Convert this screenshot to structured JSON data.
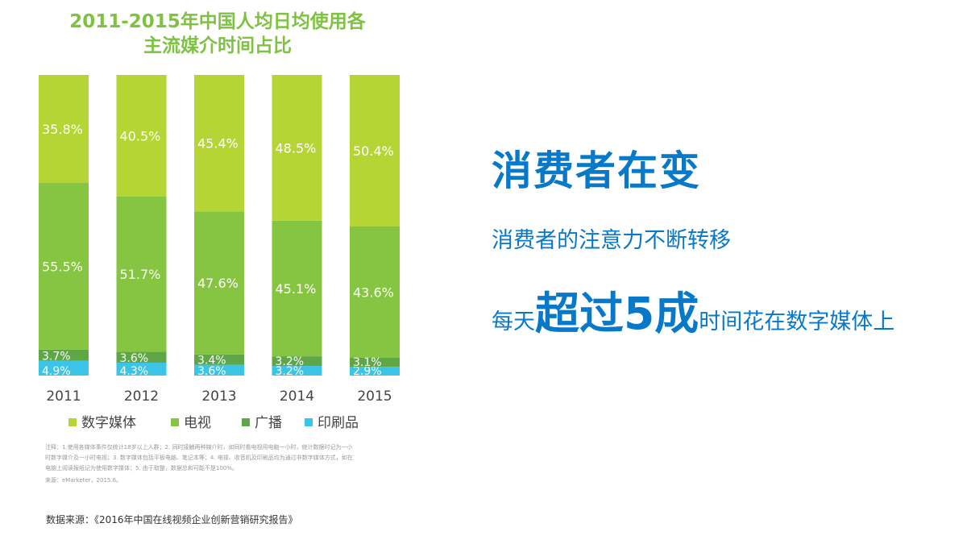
{
  "chart_data": {
    "type": "bar",
    "stacked": true,
    "percent": true,
    "title_lines": [
      "2011-2015年中国人均日均使用各",
      "主流媒介时间占比"
    ],
    "categories": [
      "2011",
      "2012",
      "2013",
      "2014",
      "2015"
    ],
    "series": [
      {
        "name": "印刷品",
        "color": "#3cc4e6",
        "values": [
          4.9,
          4.3,
          3.6,
          3.2,
          2.9
        ]
      },
      {
        "name": "广播",
        "color": "#5ea646",
        "values": [
          3.7,
          3.6,
          3.4,
          3.2,
          3.1
        ]
      },
      {
        "name": "电视",
        "color": "#86c541",
        "values": [
          55.5,
          51.7,
          47.6,
          45.1,
          43.6
        ]
      },
      {
        "name": "数字媒体",
        "color": "#b4d534",
        "values": [
          35.8,
          40.5,
          45.4,
          48.5,
          50.4
        ]
      }
    ],
    "legend_order": [
      "数字媒体",
      "电视",
      "广播",
      "印刷品"
    ],
    "data_label_suffix": "%",
    "legend_position": "bottom"
  },
  "notes": [
    "注释：1.使用各媒体事件仅统计18岁以上人群；2. 同时接触两种媒介时，如同时看电视用电脑一小时，统计数据时记为一小",
    "时数字媒介及一小时电视；3. 数字媒体包括平板电脑、笔记本等；4. 电视、收音机及印刷品均为通过非数字媒体方式，如在",
    "电脑上阅读报纸记为使用数字媒体；5. 由于取整，数据总和可能不是100%。",
    "来源：eMarketer，2015.6。"
  ],
  "source": "数据来源：《2016年中国在线视频企业创新营销研究报告》",
  "headline": "消费者在变",
  "subline1": "消费者的注意力不断转移",
  "subline2": {
    "pre": "每天",
    "emph": "超过5成",
    "post": "时间花在数字媒体上"
  }
}
